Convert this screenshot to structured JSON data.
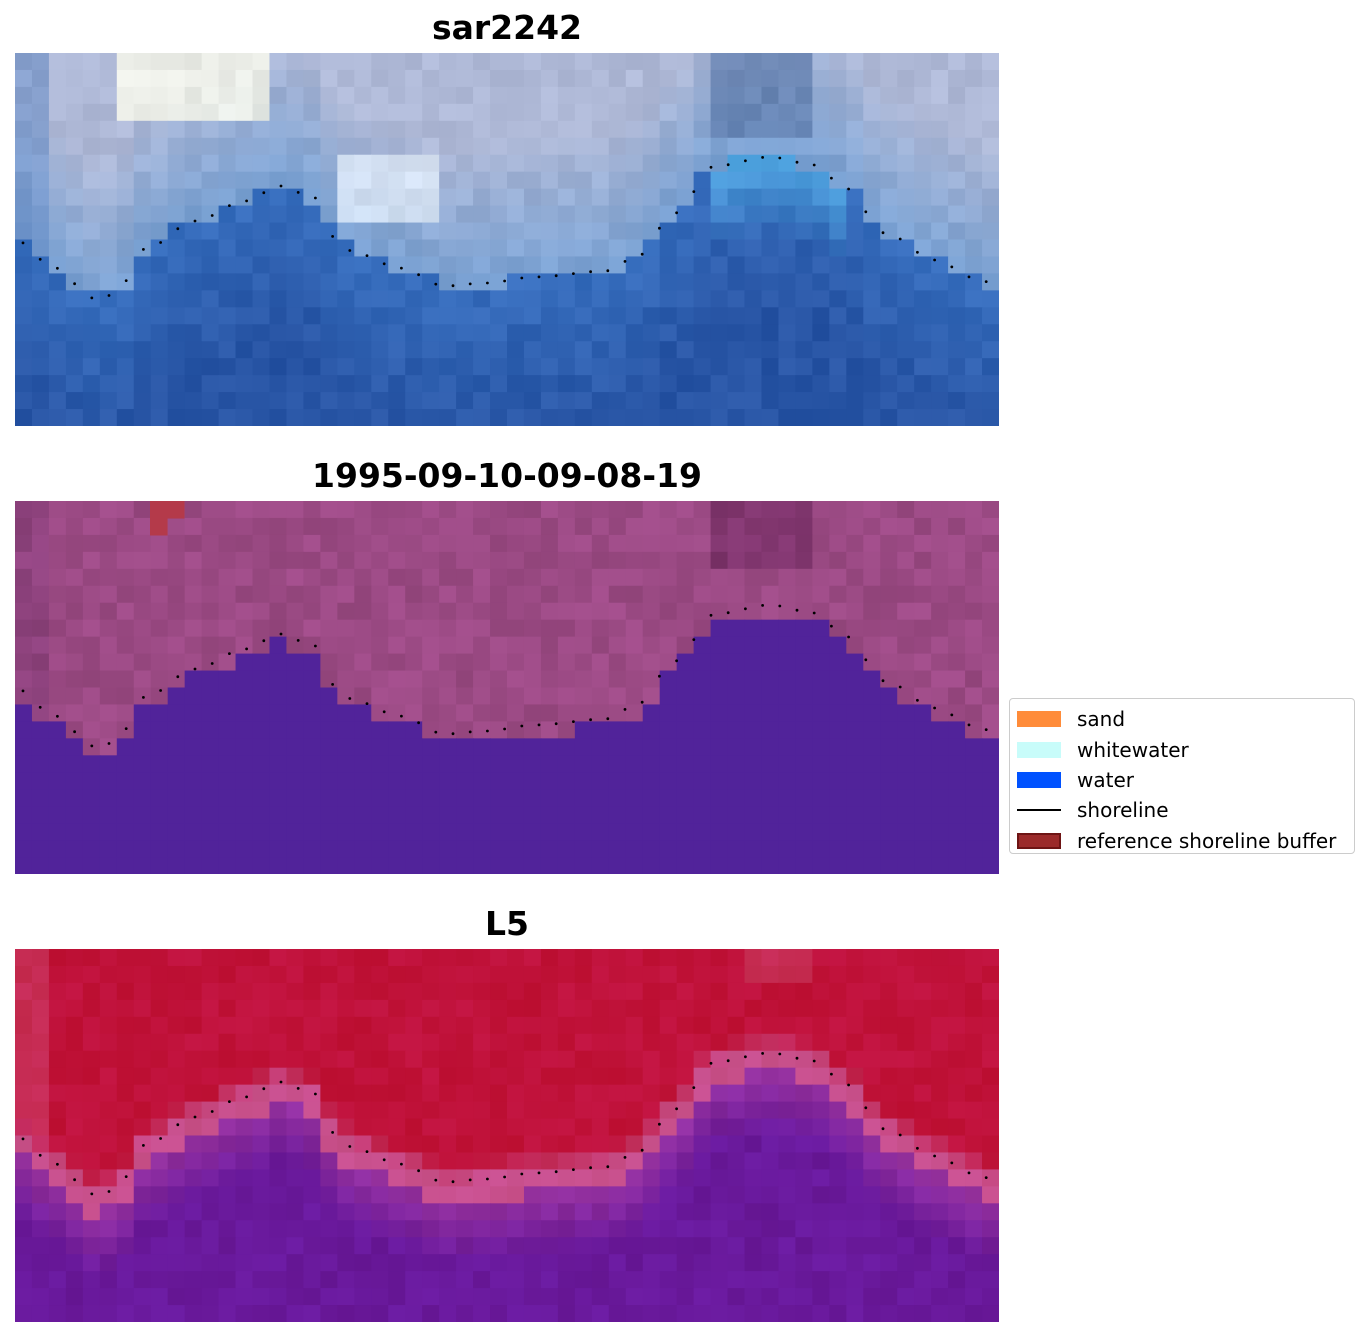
{
  "panels": [
    {
      "title": "sar2242",
      "style": "rgb"
    },
    {
      "title": "1995-09-10-09-08-19",
      "style": "classified"
    },
    {
      "title": "L5",
      "style": "index"
    }
  ],
  "legend": {
    "items": [
      {
        "label": "sand",
        "kind": "patch",
        "color": "#ff8c3a"
      },
      {
        "label": "whitewater",
        "kind": "patch",
        "color": "#c8fcfa"
      },
      {
        "label": "water",
        "kind": "patch",
        "color": "#0052ff"
      },
      {
        "label": "shoreline",
        "kind": "line",
        "color": "#000000"
      },
      {
        "label": "reference shoreline buffer",
        "kind": "patch",
        "color": "#9b2a2a",
        "edge": "#6e1414"
      }
    ]
  },
  "colors": {
    "classified_water": "#51239a",
    "classified_land": "#9b4a84",
    "reference_buffer": "#b43a4a",
    "index_land": "#c0123a",
    "index_water": "#6a1a9a"
  }
}
